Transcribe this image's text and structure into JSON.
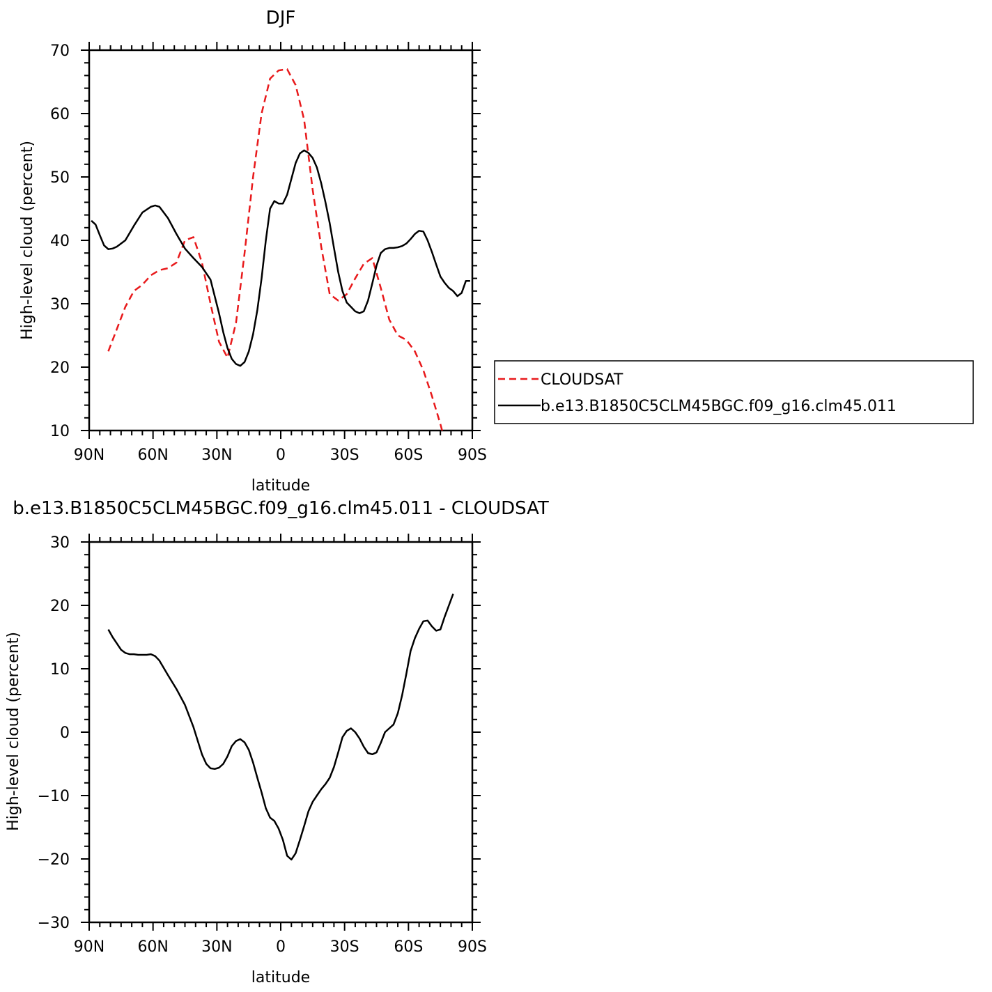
{
  "chart_data": [
    {
      "type": "line",
      "title": "DJF",
      "xlabel": "latitude",
      "ylabel": "High-level cloud (percent)",
      "xlim": [
        90,
        -90
      ],
      "ylim": [
        10,
        70
      ],
      "x_ticks": [
        90,
        60,
        30,
        0,
        -30,
        -60,
        -90
      ],
      "x_tick_labels": [
        "90N",
        "60N",
        "30N",
        "0",
        "30S",
        "60S",
        "90S"
      ],
      "y_ticks": [
        10,
        20,
        30,
        40,
        50,
        60,
        70
      ],
      "y_tick_labels": [
        "10",
        "20",
        "30",
        "40",
        "50",
        "60",
        "70"
      ],
      "grid": false,
      "legend_position": "right",
      "series": [
        {
          "name": "CLOUDSAT",
          "color": "#e8191b",
          "dash": "dashed",
          "x": [
            81,
            77,
            73,
            69,
            65,
            61,
            57,
            53,
            49,
            45,
            41,
            37,
            33,
            29,
            25,
            21,
            17,
            13,
            9,
            5,
            1,
            -3,
            -7,
            -11,
            -15,
            -19,
            -23,
            -27,
            -31,
            -35,
            -39,
            -43,
            -47,
            -51,
            -55,
            -59,
            -63,
            -67,
            -71,
            -75,
            -79
          ],
          "values": [
            22.5,
            26,
            29.5,
            32,
            33,
            34.5,
            35.3,
            35.6,
            36.5,
            40,
            40.5,
            36.5,
            30,
            24,
            21.5,
            27,
            38,
            50,
            60,
            65.5,
            66.8,
            67,
            64.5,
            59,
            48,
            39,
            31.5,
            30.5,
            31.5,
            34,
            36.3,
            37.2,
            32.5,
            27.5,
            25,
            24.3,
            22.5,
            19.5,
            15.5,
            11,
            6
          ]
        },
        {
          "name": "b.e13.B1850C5CLM45BGC.f09_g16.clm45.011",
          "color": "#000000",
          "dash": "solid",
          "x": [
            89,
            87,
            85,
            83,
            81,
            79,
            77,
            73,
            69,
            65,
            61,
            59,
            57,
            53,
            49,
            45,
            41,
            37,
            33,
            29,
            27,
            25,
            23,
            21,
            19,
            17,
            15,
            13,
            11,
            9,
            7,
            5,
            3,
            1,
            -1,
            -3,
            -5,
            -7,
            -9,
            -11,
            -13,
            -15,
            -17,
            -19,
            -21,
            -23,
            -25,
            -27,
            -29,
            -31,
            -33,
            -35,
            -37,
            -39,
            -41,
            -43,
            -45,
            -47,
            -49,
            -51,
            -53,
            -55,
            -57,
            -59,
            -61,
            -63,
            -65,
            -67,
            -69,
            -71,
            -73,
            -75,
            -77,
            -79,
            -81,
            -83,
            -85,
            -87,
            -89
          ],
          "values": [
            43.1,
            42.5,
            40.8,
            39.2,
            38.6,
            38.7,
            39,
            40,
            42.3,
            44.4,
            45.3,
            45.5,
            45.3,
            43.5,
            41,
            38.7,
            37.2,
            35.8,
            33.8,
            28.5,
            25.5,
            23,
            21.3,
            20.5,
            20.2,
            20.8,
            22.5,
            25.2,
            29,
            34,
            40,
            45,
            46.2,
            45.8,
            45.8,
            47.2,
            49.7,
            52.2,
            53.7,
            54.2,
            53.8,
            53,
            51.5,
            49,
            46,
            42.7,
            38.8,
            35,
            32,
            30.2,
            29.5,
            28.8,
            28.5,
            28.8,
            30.5,
            33.2,
            36,
            38,
            38.6,
            38.8,
            38.8,
            38.9,
            39.1,
            39.5,
            40.2,
            41,
            41.5,
            41.4,
            40,
            38.2,
            36.2,
            34.3,
            33.3,
            32.5,
            32,
            31.2,
            31.7,
            33.6,
            33.6
          ]
        }
      ]
    },
    {
      "type": "line",
      "title": "b.e13.B1850C5CLM45BGC.f09_g16.clm45.011 - CLOUDSAT",
      "xlabel": "latitude",
      "ylabel": "High-level cloud (percent)",
      "xlim": [
        90,
        -90
      ],
      "ylim": [
        -30,
        30
      ],
      "x_ticks": [
        90,
        60,
        30,
        0,
        -30,
        -60,
        -90
      ],
      "x_tick_labels": [
        "90N",
        "60N",
        "30N",
        "0",
        "30S",
        "60S",
        "90S"
      ],
      "y_ticks": [
        -30,
        -20,
        -10,
        0,
        10,
        20,
        30
      ],
      "y_tick_labels": [
        "−30",
        "−20",
        "−10",
        "0",
        "10",
        "20",
        "30"
      ],
      "grid": false,
      "series": [
        {
          "color": "#000000",
          "dash": "solid",
          "x": [
            81,
            79,
            77,
            75,
            73,
            71,
            69,
            67,
            65,
            63,
            61,
            59,
            57,
            53,
            49,
            45,
            41,
            37,
            35,
            33,
            31,
            29,
            27,
            25,
            23,
            21,
            19,
            17,
            15,
            13,
            11,
            9,
            7,
            5,
            3,
            1,
            -1,
            -3,
            -5,
            -7,
            -9,
            -11,
            -13,
            -15,
            -17,
            -19,
            -21,
            -23,
            -25,
            -27,
            -29,
            -31,
            -33,
            -35,
            -37,
            -39,
            -41,
            -43,
            -45,
            -47,
            -49,
            -51,
            -53,
            -55,
            -57,
            -59,
            -61,
            -63,
            -65,
            -67,
            -69,
            -71,
            -73,
            -75,
            -77,
            -79,
            -81
          ],
          "values": [
            16.2,
            15,
            14,
            13,
            12.5,
            12.3,
            12.3,
            12.2,
            12.2,
            12.2,
            12.3,
            12,
            11.3,
            9,
            6.8,
            4.3,
            0.8,
            -3.5,
            -5,
            -5.7,
            -5.8,
            -5.6,
            -5,
            -3.8,
            -2.2,
            -1.4,
            -1.1,
            -1.6,
            -2.8,
            -4.8,
            -7.2,
            -9.5,
            -12,
            -13.5,
            -14,
            -15.2,
            -17,
            -19.5,
            -20.1,
            -19.1,
            -17,
            -14.8,
            -12.5,
            -11,
            -10,
            -9,
            -8.2,
            -7.2,
            -5.5,
            -3.2,
            -0.8,
            0.2,
            0.6,
            0,
            -1,
            -2.3,
            -3.3,
            -3.5,
            -3.2,
            -1.7,
            0,
            0.6,
            1.2,
            3,
            5.8,
            9.2,
            12.8,
            14.8,
            16.3,
            17.5,
            17.6,
            16.7,
            16,
            16.2,
            18.2,
            20,
            21.8
          ]
        }
      ]
    }
  ]
}
